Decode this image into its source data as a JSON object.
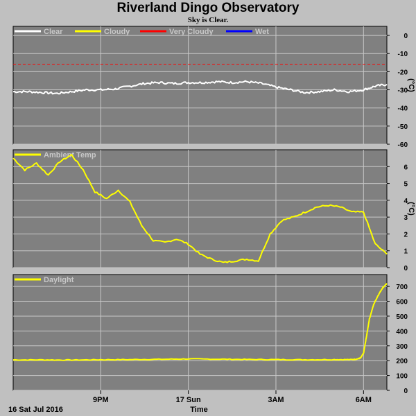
{
  "header": {
    "title": "Riverland Dingo Observatory",
    "subtitle": "Sky is Clear."
  },
  "colors": {
    "plot_bg": "#808080",
    "frame_bg": "#c0c0c0",
    "grid": "#c8c8c8",
    "clear": "#ffffff",
    "cloudy": "#ffff00",
    "very_cloudy": "#ff0000",
    "wet": "#0000ff",
    "ambient": "#ffff00",
    "daylight": "#ffff00"
  },
  "x_axis": {
    "tick_labels": [
      "9PM",
      "17 Sun",
      "3AM",
      "6AM"
    ],
    "start_label": "16 Sat Jul 2016",
    "label": "Time"
  },
  "chart_data": [
    {
      "type": "line",
      "panel": "sky",
      "legend": [
        "Clear",
        "Cloudy",
        "Very Cloudy",
        "Wet"
      ],
      "ylabel": "(°C)",
      "ylim": [
        -60,
        5
      ],
      "yticks": [
        0,
        -10,
        -20,
        -30,
        -40,
        -50,
        -60
      ],
      "grid": true,
      "x_hours": [
        0,
        0.5,
        1,
        1.5,
        2,
        2.5,
        3,
        3.5,
        4,
        4.5,
        5,
        5.5,
        6,
        6.5,
        7,
        7.5,
        8,
        8.5,
        9,
        9.5,
        10,
        10.5,
        11,
        11.5,
        12,
        12.4,
        12.8
      ],
      "series": [
        {
          "name": "Clear",
          "values": [
            -31,
            -31,
            -31.5,
            -32,
            -31,
            -30,
            -30,
            -29.5,
            -28,
            -26.5,
            -26,
            -26.5,
            -26,
            -26,
            -25.5,
            -26,
            -25.5,
            -26.5,
            -28.5,
            -30,
            -31.5,
            -31,
            -30,
            -31,
            -30,
            -28,
            -27
          ]
        },
        {
          "name": "Very Cloudy",
          "threshold": -16
        }
      ]
    },
    {
      "type": "line",
      "panel": "ambient",
      "legend": [
        "Ambient Temp"
      ],
      "ylabel": "(°C)",
      "ylim": [
        0,
        7
      ],
      "yticks": [
        0,
        1,
        2,
        3,
        4,
        5,
        6
      ],
      "grid": true,
      "series": [
        {
          "name": "Ambient Temp",
          "x_hours": [
            0,
            0.4,
            0.8,
            1.2,
            1.6,
            2.0,
            2.4,
            2.8,
            3.2,
            3.6,
            4.0,
            4.4,
            4.8,
            5.2,
            5.6,
            6.0,
            6.4,
            6.8,
            7.2,
            7.6,
            8.0,
            8.4,
            8.8,
            9.2,
            9.6,
            10.0,
            10.4,
            10.8,
            11.2,
            11.6,
            12.0,
            12.4,
            12.8
          ],
          "values": [
            6.5,
            5.8,
            6.2,
            5.5,
            6.3,
            6.7,
            5.8,
            4.5,
            4.1,
            4.6,
            3.9,
            2.5,
            1.6,
            1.5,
            1.7,
            1.4,
            0.8,
            0.5,
            0.3,
            0.4,
            0.5,
            0.4,
            2.0,
            2.8,
            3.0,
            3.3,
            3.6,
            3.7,
            3.6,
            3.3,
            3.3,
            1.4,
            0.8
          ]
        }
      ]
    },
    {
      "type": "line",
      "panel": "daylight",
      "legend": [
        "Daylight"
      ],
      "ylim": [
        0,
        780
      ],
      "yticks": [
        0,
        100,
        200,
        300,
        400,
        500,
        600,
        700
      ],
      "grid": true,
      "series": [
        {
          "name": "Daylight",
          "x_hours": [
            0,
            1,
            2,
            3,
            4,
            5,
            6,
            7,
            8,
            9,
            10,
            11,
            11.6,
            11.8,
            11.9,
            12.0,
            12.1,
            12.2,
            12.35,
            12.5,
            12.65,
            12.8
          ],
          "values": [
            205,
            205,
            204,
            206,
            207,
            209,
            212,
            210,
            208,
            207,
            206,
            207,
            207,
            212,
            218,
            250,
            360,
            480,
            580,
            640,
            690,
            720
          ]
        }
      ]
    }
  ]
}
